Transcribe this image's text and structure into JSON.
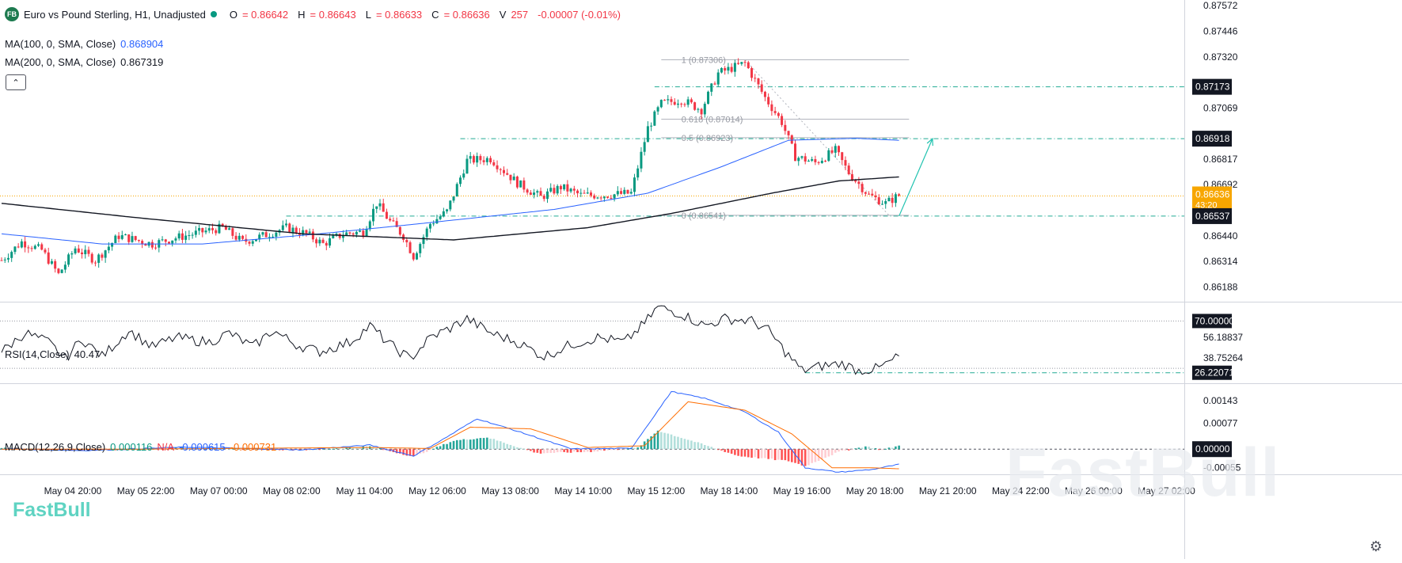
{
  "header": {
    "symbol_badge": "FB",
    "title": "Euro vs Pound Sterling, H1, Unadjusted",
    "open_label": "O",
    "open": "= 0.86642",
    "high_label": "H",
    "high": "= 0.86643",
    "low_label": "L",
    "low": "= 0.86633",
    "close_label": "C",
    "close": "= 0.86636",
    "volume_label": "V",
    "volume": "257",
    "change": "-0.00007 (-0.01%)"
  },
  "indicators": {
    "ma100_label": "MA(100, 0, SMA, Close)",
    "ma100_value": "0.868904",
    "ma200_label": "MA(200, 0, SMA, Close)",
    "ma200_value": "0.867319",
    "collapse_icon": "chevron-up-icon",
    "rsi_label": "RSI(14,Close)",
    "rsi_value": "40.47",
    "macd_label": "MACD(12,26,9,Close)",
    "macd_value": "0.000116",
    "macd_na": "N/A",
    "macd_signal": "-0.000615",
    "macd_hist": "-0.000731"
  },
  "colors": {
    "up": "#089981",
    "down": "#f23645",
    "ma100": "#2962ff",
    "ma200": "#131722",
    "fib": "#b2b5be",
    "guide": "#22ab94",
    "price_tag": "#f7a600",
    "macd": "#2962ff",
    "signal": "#ff6d00"
  },
  "chart_data": [
    {
      "type": "candlestick",
      "title": "Euro vs Pound Sterling, H1, Unadjusted",
      "y_ticks": [
        "0.87572",
        "0.87446",
        "0.87320",
        "0.87069",
        "0.86817",
        "0.86692",
        "0.86440",
        "0.86314",
        "0.86188"
      ],
      "ylim": [
        0.8612,
        0.876
      ],
      "x_ticks": [
        "May 04 20:00",
        "May 05 22:00",
        "May 07 00:00",
        "May 08 02:00",
        "May 11 04:00",
        "May 12 06:00",
        "May 13 08:00",
        "May 14 10:00",
        "May 15 12:00",
        "May 18 14:00",
        "May 19 16:00",
        "May 20 18:00",
        "May 21 20:00",
        "May 24 22:00",
        "May 26 00:00",
        "May 27 02:00"
      ],
      "anchors": [
        {
          "i": 0,
          "p": 0.8632
        },
        {
          "i": 6,
          "p": 0.8641
        },
        {
          "i": 12,
          "p": 0.8637
        },
        {
          "i": 17,
          "p": 0.8625
        },
        {
          "i": 22,
          "p": 0.8638
        },
        {
          "i": 28,
          "p": 0.8632
        },
        {
          "i": 35,
          "p": 0.8644
        },
        {
          "i": 45,
          "p": 0.864
        },
        {
          "i": 52,
          "p": 0.8643
        },
        {
          "i": 60,
          "p": 0.8646
        },
        {
          "i": 66,
          "p": 0.8648
        },
        {
          "i": 72,
          "p": 0.8641
        },
        {
          "i": 78,
          "p": 0.8644
        },
        {
          "i": 85,
          "p": 0.8648
        },
        {
          "i": 91,
          "p": 0.8645
        },
        {
          "i": 96,
          "p": 0.864
        },
        {
          "i": 102,
          "p": 0.8645
        },
        {
          "i": 108,
          "p": 0.8646
        },
        {
          "i": 112,
          "p": 0.866
        },
        {
          "i": 116,
          "p": 0.8651
        },
        {
          "i": 120,
          "p": 0.8644
        },
        {
          "i": 123,
          "p": 0.8634
        },
        {
          "i": 128,
          "p": 0.865
        },
        {
          "i": 133,
          "p": 0.8656
        },
        {
          "i": 139,
          "p": 0.8681
        },
        {
          "i": 146,
          "p": 0.8682
        },
        {
          "i": 154,
          "p": 0.867
        },
        {
          "i": 161,
          "p": 0.8663
        },
        {
          "i": 167,
          "p": 0.8668
        },
        {
          "i": 173,
          "p": 0.8664
        },
        {
          "i": 180,
          "p": 0.8664
        },
        {
          "i": 188,
          "p": 0.8665
        },
        {
          "i": 193,
          "p": 0.8697
        },
        {
          "i": 197,
          "p": 0.8709
        },
        {
          "i": 203,
          "p": 0.8711
        },
        {
          "i": 209,
          "p": 0.8706
        },
        {
          "i": 214,
          "p": 0.8724
        },
        {
          "i": 222,
          "p": 0.8729
        },
        {
          "i": 228,
          "p": 0.8712
        },
        {
          "i": 233,
          "p": 0.87
        },
        {
          "i": 237,
          "p": 0.8683
        },
        {
          "i": 243,
          "p": 0.868
        },
        {
          "i": 249,
          "p": 0.8686
        },
        {
          "i": 253,
          "p": 0.8675
        },
        {
          "i": 259,
          "p": 0.8664
        },
        {
          "i": 264,
          "p": 0.866
        },
        {
          "i": 268,
          "p": 0.8664
        }
      ],
      "ma100": [
        {
          "i": 0,
          "p": 0.8645
        },
        {
          "i": 30,
          "p": 0.864
        },
        {
          "i": 60,
          "p": 0.864
        },
        {
          "i": 95,
          "p": 0.8645
        },
        {
          "i": 125,
          "p": 0.865
        },
        {
          "i": 165,
          "p": 0.8657
        },
        {
          "i": 193,
          "p": 0.8665
        },
        {
          "i": 215,
          "p": 0.8678
        },
        {
          "i": 235,
          "p": 0.8691
        },
        {
          "i": 255,
          "p": 0.8692
        },
        {
          "i": 268,
          "p": 0.8691
        }
      ],
      "ma200": [
        {
          "i": 0,
          "p": 0.866
        },
        {
          "i": 40,
          "p": 0.8653
        },
        {
          "i": 90,
          "p": 0.8645
        },
        {
          "i": 135,
          "p": 0.8642
        },
        {
          "i": 175,
          "p": 0.8648
        },
        {
          "i": 200,
          "p": 0.8655
        },
        {
          "i": 230,
          "p": 0.8665
        },
        {
          "i": 250,
          "p": 0.8671
        },
        {
          "i": 268,
          "p": 0.8673
        }
      ],
      "fib_levels": [
        {
          "label": "1 (0.87306)",
          "price": 0.87306
        },
        {
          "label": "0.618 (0.87014)",
          "price": 0.87014
        },
        {
          "label": "0.5 (0.86923)",
          "price": 0.86923
        },
        {
          "label": "0 (0.86541)",
          "price": 0.86541
        }
      ],
      "guide_lines": [
        0.87173,
        0.86918,
        0.86537
      ],
      "price_tags": [
        {
          "label": "0.87173",
          "price": 0.87173,
          "style": "dark"
        },
        {
          "label": "0.86918",
          "price": 0.86918,
          "style": "dark"
        },
        {
          "label": "0.86636",
          "price": 0.86636,
          "style": "orange",
          "sub": "43:20"
        },
        {
          "label": "0.86537",
          "price": 0.86537,
          "style": "dark"
        }
      ],
      "current_price": 0.86636,
      "arrow": {
        "from": {
          "i": 268,
          "p": 0.86537
        },
        "to": {
          "i": 278,
          "p": 0.86918
        }
      }
    },
    {
      "type": "line",
      "title": "RSI(14,Close)",
      "ylim": [
        18,
        85
      ],
      "y_ticks": [
        "56.18837",
        "38.75264"
      ],
      "levels": [
        70,
        30
      ],
      "level_tags": [
        {
          "label": "70.00000",
          "value": 70
        },
        {
          "label": "26.22071",
          "value": 26.22
        }
      ],
      "anchors": [
        {
          "i": 0,
          "v": 44
        },
        {
          "i": 7,
          "v": 60
        },
        {
          "i": 14,
          "v": 52
        },
        {
          "i": 19,
          "v": 38
        },
        {
          "i": 24,
          "v": 55
        },
        {
          "i": 30,
          "v": 40
        },
        {
          "i": 38,
          "v": 62
        },
        {
          "i": 45,
          "v": 48
        },
        {
          "i": 52,
          "v": 56
        },
        {
          "i": 62,
          "v": 52
        },
        {
          "i": 68,
          "v": 60
        },
        {
          "i": 75,
          "v": 48
        },
        {
          "i": 81,
          "v": 62
        },
        {
          "i": 88,
          "v": 50
        },
        {
          "i": 95,
          "v": 44
        },
        {
          "i": 104,
          "v": 52
        },
        {
          "i": 110,
          "v": 66
        },
        {
          "i": 116,
          "v": 50
        },
        {
          "i": 122,
          "v": 38
        },
        {
          "i": 128,
          "v": 56
        },
        {
          "i": 134,
          "v": 64
        },
        {
          "i": 139,
          "v": 72
        },
        {
          "i": 146,
          "v": 60
        },
        {
          "i": 154,
          "v": 52
        },
        {
          "i": 162,
          "v": 40
        },
        {
          "i": 170,
          "v": 50
        },
        {
          "i": 178,
          "v": 56
        },
        {
          "i": 186,
          "v": 52
        },
        {
          "i": 192,
          "v": 68
        },
        {
          "i": 196,
          "v": 82
        },
        {
          "i": 203,
          "v": 76
        },
        {
          "i": 210,
          "v": 66
        },
        {
          "i": 216,
          "v": 72
        },
        {
          "i": 224,
          "v": 70
        },
        {
          "i": 229,
          "v": 62
        },
        {
          "i": 234,
          "v": 44
        },
        {
          "i": 239,
          "v": 28
        },
        {
          "i": 245,
          "v": 32
        },
        {
          "i": 251,
          "v": 34
        },
        {
          "i": 256,
          "v": 28
        },
        {
          "i": 262,
          "v": 30
        },
        {
          "i": 268,
          "v": 40
        }
      ]
    },
    {
      "type": "bar+line",
      "title": "MACD(12,26,9,Close)",
      "ylim": [
        -0.00072,
        0.0019
      ],
      "y_ticks": [
        "0.00143",
        "0.00077",
        "0.00000",
        "-0.00055"
      ],
      "zero_tag": "0.00000",
      "macd": [
        {
          "i": 0,
          "v": 1e-05
        },
        {
          "i": 25,
          "v": -4e-05
        },
        {
          "i": 55,
          "v": 6e-05
        },
        {
          "i": 90,
          "v": -2e-05
        },
        {
          "i": 110,
          "v": 0.00012
        },
        {
          "i": 123,
          "v": -0.0002
        },
        {
          "i": 132,
          "v": 0.0003
        },
        {
          "i": 142,
          "v": 0.0009
        },
        {
          "i": 155,
          "v": 0.0005
        },
        {
          "i": 170,
          "v": 1e-05
        },
        {
          "i": 188,
          "v": 2e-05
        },
        {
          "i": 200,
          "v": 0.0017
        },
        {
          "i": 210,
          "v": 0.0015
        },
        {
          "i": 222,
          "v": 0.0011
        },
        {
          "i": 232,
          "v": 0.0005
        },
        {
          "i": 240,
          "v": -0.00055
        },
        {
          "i": 250,
          "v": -0.00068
        },
        {
          "i": 260,
          "v": -0.0006
        },
        {
          "i": 268,
          "v": -0.00045
        }
      ],
      "signal": [
        {
          "i": 0,
          "v": 0.0
        },
        {
          "i": 40,
          "v": 0.0
        },
        {
          "i": 110,
          "v": 5e-05
        },
        {
          "i": 128,
          "v": 2e-05
        },
        {
          "i": 140,
          "v": 0.00065
        },
        {
          "i": 158,
          "v": 0.0006
        },
        {
          "i": 175,
          "v": 5e-05
        },
        {
          "i": 192,
          "v": 0.0001
        },
        {
          "i": 205,
          "v": 0.0014
        },
        {
          "i": 222,
          "v": 0.00115
        },
        {
          "i": 236,
          "v": 0.00045
        },
        {
          "i": 248,
          "v": -0.00055
        },
        {
          "i": 260,
          "v": -0.00055
        },
        {
          "i": 268,
          "v": -0.00058
        }
      ],
      "hist": [
        {
          "i": 0,
          "v": 3e-05
        },
        {
          "i": 25,
          "v": -4e-05
        },
        {
          "i": 55,
          "v": 5e-05
        },
        {
          "i": 90,
          "v": -3e-05
        },
        {
          "i": 110,
          "v": 8e-05
        },
        {
          "i": 123,
          "v": -0.00022
        },
        {
          "i": 135,
          "v": 0.00025
        },
        {
          "i": 145,
          "v": 0.00035
        },
        {
          "i": 160,
          "v": -0.00012
        },
        {
          "i": 175,
          "v": -8e-05
        },
        {
          "i": 190,
          "v": 4e-05
        },
        {
          "i": 196,
          "v": 0.00055
        },
        {
          "i": 206,
          "v": 0.00025
        },
        {
          "i": 220,
          "v": -0.0002
        },
        {
          "i": 235,
          "v": -0.00035
        },
        {
          "i": 240,
          "v": -0.0005
        },
        {
          "i": 250,
          "v": -8e-05
        },
        {
          "i": 258,
          "v": 8e-05
        },
        {
          "i": 263,
          "v": -2e-05
        },
        {
          "i": 268,
          "v": 0.0001
        }
      ]
    }
  ],
  "branding": {
    "watermark": "FastBull",
    "logo": "FastBull",
    "settings_icon": "gear-icon"
  }
}
